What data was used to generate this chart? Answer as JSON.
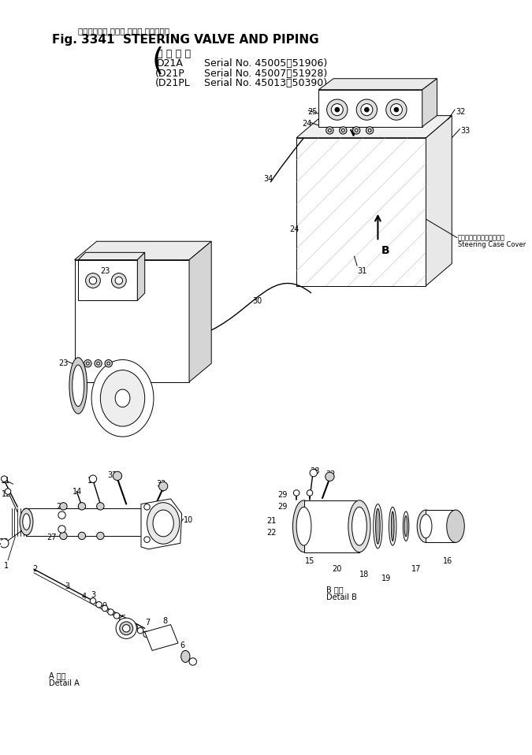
{
  "bg_color": "#ffffff",
  "title_jp": "ステアリング バルブ および パイピング",
  "title_en": "Fig. 3341  STEERING VALVE AND PIPING",
  "app_header": "適 用 号 機",
  "row1_model": "D21A",
  "row1_serial": "Serial No. 45005～51906",
  "row2_model": "(D21P",
  "row2_serial": "Serial No. 45007～51928)",
  "row3_model": "(D21PL",
  "row3_serial": "Serial No. 45013～50390)",
  "sc_cover_jp": "ステアリングケースカバー",
  "sc_cover_en": "Steering Case Cover",
  "detail_a_jp": "A 詳細",
  "detail_a_en": "Detail A",
  "detail_b_jp": "B 詳細",
  "detail_b_en": "Detail B"
}
